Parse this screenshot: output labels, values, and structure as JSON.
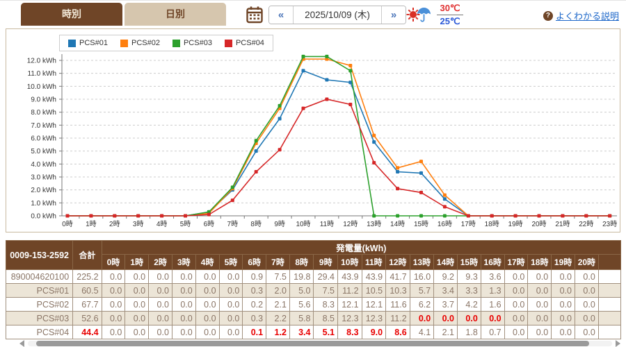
{
  "header": {
    "tabs": [
      {
        "label": "時別",
        "active": true
      },
      {
        "label": "日別",
        "active": false
      }
    ],
    "date_nav": {
      "prev_label": "«",
      "value": "2025/10/09 (木)",
      "next_label": "»"
    },
    "weather": {
      "high_temp": "30℃",
      "low_temp": "25℃",
      "icon": "sun-rain-icon"
    },
    "help": {
      "icon_char": "?",
      "link_label": "よくわかる説明"
    }
  },
  "chart_data": {
    "type": "line",
    "x": [
      "0時",
      "1時",
      "2時",
      "3時",
      "4時",
      "5時",
      "6時",
      "7時",
      "8時",
      "9時",
      "10時",
      "11時",
      "12時",
      "13時",
      "14時",
      "15時",
      "16時",
      "17時",
      "18時",
      "19時",
      "20時",
      "21時",
      "22時",
      "23時"
    ],
    "ylim": [
      0,
      12
    ],
    "ytick_step": 1.0,
    "ytick_suffix": " kWh",
    "grid": true,
    "legend_position": "top-left",
    "series": [
      {
        "name": "PCS#01",
        "color": "#1f77b4",
        "values": [
          0,
          0,
          0,
          0,
          0,
          0,
          0.3,
          2.0,
          5.0,
          7.5,
          11.2,
          10.5,
          10.3,
          5.7,
          3.4,
          3.3,
          1.3,
          0,
          0,
          0,
          0,
          0,
          0,
          0
        ]
      },
      {
        "name": "PCS#02",
        "color": "#ff7f0e",
        "values": [
          0,
          0,
          0,
          0,
          0,
          0,
          0.2,
          2.1,
          5.6,
          8.3,
          12.1,
          12.1,
          11.6,
          6.2,
          3.7,
          4.2,
          1.6,
          0,
          0,
          0,
          0,
          0,
          0,
          0
        ]
      },
      {
        "name": "PCS#03",
        "color": "#2ca02c",
        "values": [
          0,
          0,
          0,
          0,
          0,
          0,
          0.3,
          2.2,
          5.8,
          8.5,
          12.3,
          12.3,
          11.2,
          0,
          0,
          0,
          0,
          0,
          0,
          0,
          0,
          0,
          0,
          0
        ]
      },
      {
        "name": "PCS#04",
        "color": "#d62728",
        "values": [
          0,
          0,
          0,
          0,
          0,
          0,
          0.1,
          1.2,
          3.4,
          5.1,
          8.3,
          9.0,
          8.6,
          4.1,
          2.1,
          1.8,
          0.7,
          0,
          0,
          0,
          0,
          0,
          0,
          0
        ]
      }
    ]
  },
  "table": {
    "id_cell": "0009-153-2592",
    "total_label": "合計",
    "group_header": "発電量(kWh)",
    "hours": [
      "0時",
      "1時",
      "2時",
      "3時",
      "4時",
      "5時",
      "6時",
      "7時",
      "8時",
      "9時",
      "10時",
      "11時",
      "12時",
      "13時",
      "14時",
      "15時",
      "16時",
      "17時",
      "18時",
      "19時",
      "20時"
    ],
    "rows": [
      {
        "label": "890004620100",
        "total": "225.2",
        "total_red": false,
        "red_cols": [],
        "values": [
          "0.0",
          "0.0",
          "0.0",
          "0.0",
          "0.0",
          "0.0",
          "0.9",
          "7.5",
          "19.8",
          "29.4",
          "43.9",
          "43.9",
          "41.7",
          "16.0",
          "9.2",
          "9.3",
          "3.6",
          "0.0",
          "0.0",
          "0.0",
          "0.0"
        ]
      },
      {
        "label": "PCS#01",
        "total": "60.5",
        "total_red": false,
        "red_cols": [],
        "values": [
          "0.0",
          "0.0",
          "0.0",
          "0.0",
          "0.0",
          "0.0",
          "0.3",
          "2.0",
          "5.0",
          "7.5",
          "11.2",
          "10.5",
          "10.3",
          "5.7",
          "3.4",
          "3.3",
          "1.3",
          "0.0",
          "0.0",
          "0.0",
          "0.0"
        ]
      },
      {
        "label": "PCS#02",
        "total": "67.7",
        "total_red": false,
        "red_cols": [],
        "values": [
          "0.0",
          "0.0",
          "0.0",
          "0.0",
          "0.0",
          "0.0",
          "0.2",
          "2.1",
          "5.6",
          "8.3",
          "12.1",
          "12.1",
          "11.6",
          "6.2",
          "3.7",
          "4.2",
          "1.6",
          "0.0",
          "0.0",
          "0.0",
          "0.0"
        ]
      },
      {
        "label": "PCS#03",
        "total": "52.6",
        "total_red": false,
        "red_cols": [
          13,
          14,
          15,
          16
        ],
        "values": [
          "0.0",
          "0.0",
          "0.0",
          "0.0",
          "0.0",
          "0.0",
          "0.3",
          "2.2",
          "5.8",
          "8.5",
          "12.3",
          "12.3",
          "11.2",
          "0.0",
          "0.0",
          "0.0",
          "0.0",
          "0.0",
          "0.0",
          "0.0",
          "0.0"
        ]
      },
      {
        "label": "PCS#04",
        "total": "44.4",
        "total_red": true,
        "red_cols": [
          6,
          7,
          8,
          9,
          10,
          11,
          12
        ],
        "values": [
          "0.0",
          "0.0",
          "0.0",
          "0.0",
          "0.0",
          "0.0",
          "0.1",
          "1.2",
          "3.4",
          "5.1",
          "8.3",
          "9.0",
          "8.6",
          "4.1",
          "2.1",
          "1.8",
          "0.7",
          "0.0",
          "0.0",
          "0.0",
          "0.0"
        ]
      }
    ]
  },
  "colors": {
    "accent_brown": "#6f4527",
    "tab_inactive": "#d6c6ae",
    "link_blue": "#1b66c9",
    "value_red": "#e80000",
    "temp_high": "#e03030",
    "temp_low": "#2b59d8"
  }
}
